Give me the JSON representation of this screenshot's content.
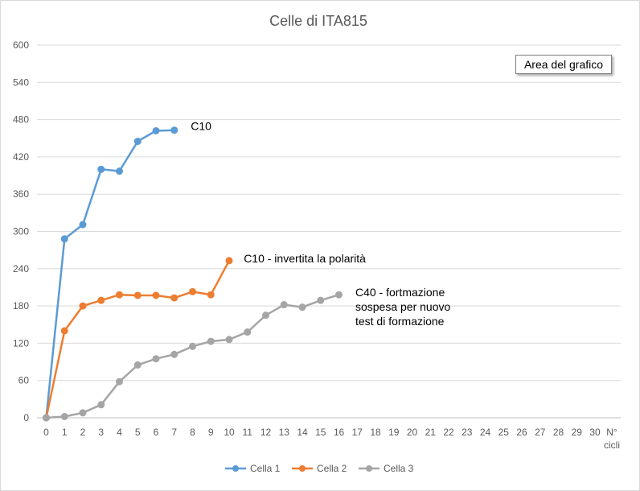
{
  "chart_data": {
    "type": "line",
    "title": "Celle di ITA815",
    "xlabel": "N° cicli",
    "ylabel": "",
    "x_ticks": [
      "0",
      "1",
      "2",
      "3",
      "4",
      "5",
      "6",
      "7",
      "8",
      "9",
      "10",
      "11",
      "12",
      "13",
      "14",
      "15",
      "16",
      "17",
      "18",
      "19",
      "20",
      "21",
      "22",
      "23",
      "24",
      "25",
      "26",
      "27",
      "28",
      "29",
      "30"
    ],
    "x_label_lines": [
      "N°",
      "cicli"
    ],
    "xlim": [
      0,
      31
    ],
    "ylim": [
      0,
      600
    ],
    "y_ticks": [
      0,
      60,
      120,
      180,
      240,
      300,
      360,
      420,
      480,
      540,
      600
    ],
    "grid": "horizontal",
    "legend_position": "bottom",
    "series": [
      {
        "name": "Cella 1",
        "color": "#5b9bd5",
        "x": [
          0,
          1,
          2,
          3,
          4,
          5,
          6,
          7
        ],
        "values": [
          0,
          288,
          311,
          400,
          397,
          445,
          462,
          463
        ]
      },
      {
        "name": "Cella 2",
        "color": "#ed7d31",
        "x": [
          0,
          1,
          2,
          3,
          4,
          5,
          6,
          7,
          8,
          9,
          10
        ],
        "values": [
          0,
          140,
          180,
          189,
          198,
          197,
          197,
          193,
          203,
          198,
          253
        ]
      },
      {
        "name": "Cella 3",
        "color": "#a5a5a5",
        "x": [
          0,
          1,
          2,
          3,
          4,
          5,
          6,
          7,
          8,
          9,
          10,
          11,
          12,
          13,
          14,
          15,
          16
        ],
        "values": [
          0,
          2,
          8,
          21,
          58,
          85,
          95,
          102,
          115,
          123,
          126,
          138,
          165,
          182,
          178,
          189,
          198
        ]
      }
    ],
    "annotations": [
      {
        "lines": [
          "C10"
        ],
        "x": 7.9,
        "y": 463
      },
      {
        "lines": [
          "C10 - invertita la polarità"
        ],
        "x": 10.8,
        "y": 250
      },
      {
        "lines": [
          "C40 - fortmazione",
          "sospesa per nuovo",
          "test di formazione"
        ],
        "x": 16.9,
        "y": 196
      }
    ]
  },
  "tooltip": {
    "label": "Area del grafico"
  }
}
